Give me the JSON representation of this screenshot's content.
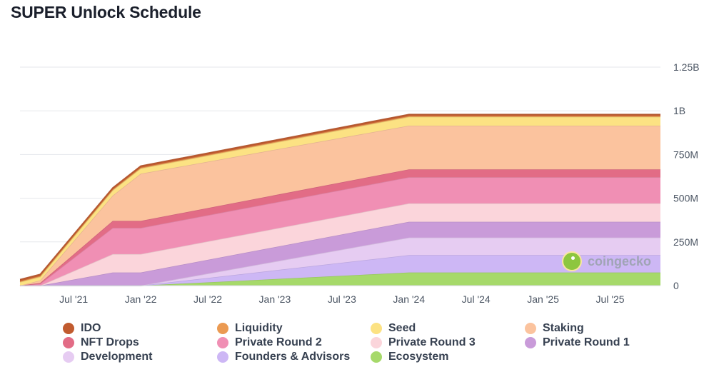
{
  "title": "SUPER Unlock Schedule",
  "chart_data": {
    "type": "area",
    "stacked": true,
    "title": "SUPER Unlock Schedule",
    "xlabel": "",
    "ylabel": "",
    "ylim": [
      0,
      1250000000
    ],
    "y_ticks": [
      {
        "value": 0,
        "label": "0"
      },
      {
        "value": 250000000,
        "label": "250M"
      },
      {
        "value": 500000000,
        "label": "500M"
      },
      {
        "value": 750000000,
        "label": "750M"
      },
      {
        "value": 1000000000,
        "label": "1B"
      },
      {
        "value": 1250000000,
        "label": "1.25B"
      }
    ],
    "x_ticks": [
      {
        "t": 6,
        "label": "Jul '21"
      },
      {
        "t": 12,
        "label": "Jan '22"
      },
      {
        "t": 18,
        "label": "Jul '22"
      },
      {
        "t": 24,
        "label": "Jan '23"
      },
      {
        "t": 30,
        "label": "Jul '23"
      },
      {
        "t": 36,
        "label": "Jan '24"
      },
      {
        "t": 42,
        "label": "Jul '24"
      },
      {
        "t": 48,
        "label": "Jan '25"
      },
      {
        "t": 54,
        "label": "Jul '25"
      }
    ],
    "x_unit": "months since Jan 2021",
    "xlim": [
      1.2,
      58.5
    ],
    "x": [
      1.2,
      3,
      9.5,
      12,
      36,
      58.5
    ],
    "series": [
      {
        "name": "Ecosystem",
        "color": "#a6d96a",
        "values": [
          0,
          0,
          0,
          0,
          75000000,
          75000000
        ]
      },
      {
        "name": "Founders & Advisors",
        "color": "#cdb7f5",
        "values": [
          0,
          0,
          0,
          0,
          100000000,
          100000000
        ]
      },
      {
        "name": "Development",
        "color": "#e6ccf2",
        "values": [
          0,
          0,
          0,
          0,
          100000000,
          100000000
        ]
      },
      {
        "name": "Private Round 1",
        "color": "#c99bd9",
        "values": [
          0,
          0,
          75000000,
          75000000,
          90000000,
          90000000
        ]
      },
      {
        "name": "Private Round 3",
        "color": "#fbd5db",
        "values": [
          0,
          0,
          105000000,
          105000000,
          105000000,
          105000000
        ]
      },
      {
        "name": "Private Round 2",
        "color": "#f08fb4",
        "values": [
          0,
          10000000,
          150000000,
          150000000,
          150000000,
          150000000
        ]
      },
      {
        "name": "NFT Drops",
        "color": "#e26c86",
        "values": [
          0,
          5000000,
          40000000,
          40000000,
          45000000,
          45000000
        ]
      },
      {
        "name": "Staking",
        "color": "#fbc39e",
        "values": [
          0,
          15000000,
          145000000,
          270000000,
          250000000,
          250000000
        ]
      },
      {
        "name": "Seed",
        "color": "#fce283",
        "values": [
          20000000,
          20000000,
          30000000,
          30000000,
          50000000,
          50000000
        ]
      },
      {
        "name": "Liquidity",
        "color": "#eb9a52",
        "values": [
          5000000,
          5000000,
          5000000,
          5000000,
          5000000,
          5000000
        ]
      },
      {
        "name": "IDO",
        "color": "#c15b2f",
        "values": [
          10000000,
          10000000,
          10000000,
          10000000,
          10000000,
          10000000
        ]
      }
    ]
  },
  "legend": [
    {
      "label": "IDO",
      "color": "#c15b2f"
    },
    {
      "label": "Liquidity",
      "color": "#eb9a52"
    },
    {
      "label": "Seed",
      "color": "#fce283"
    },
    {
      "label": "Staking",
      "color": "#fbc39e"
    },
    {
      "label": "NFT Drops",
      "color": "#e26c86"
    },
    {
      "label": "Private Round 2",
      "color": "#f08fb4"
    },
    {
      "label": "Private Round 3",
      "color": "#fbd5db"
    },
    {
      "label": "Private Round 1",
      "color": "#c99bd9"
    },
    {
      "label": "Development",
      "color": "#e6ccf2"
    },
    {
      "label": "Founders & Advisors",
      "color": "#cdb7f5"
    },
    {
      "label": "Ecosystem",
      "color": "#a6d96a"
    }
  ],
  "watermark": {
    "text": "coingecko"
  }
}
